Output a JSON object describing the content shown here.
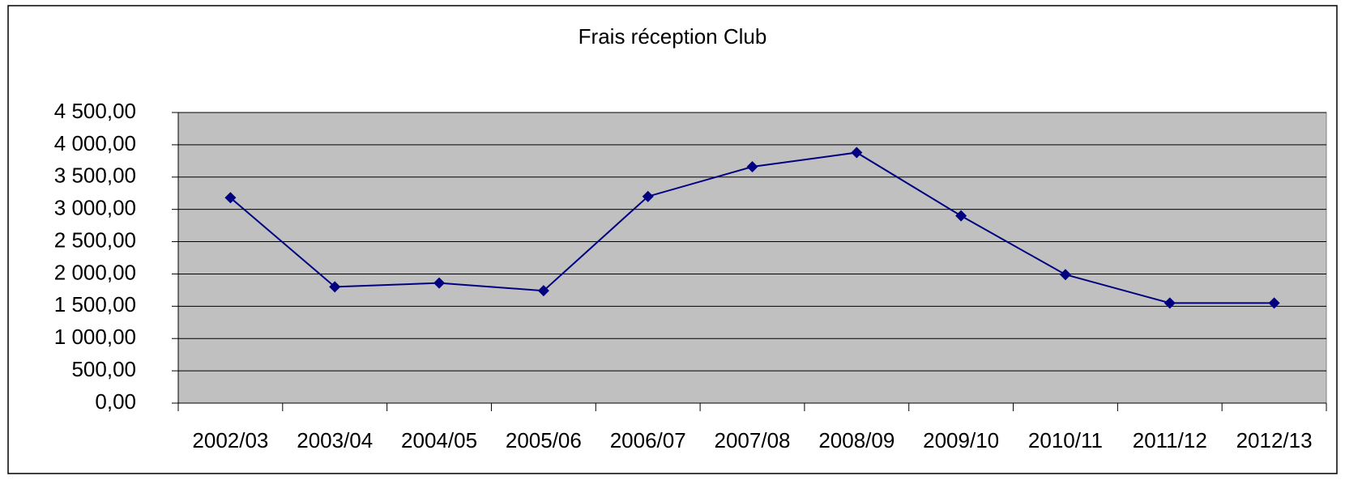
{
  "chart_data": {
    "type": "line",
    "title": "Frais réception Club",
    "categories": [
      "2002/03",
      "2003/04",
      "2004/05",
      "2005/06",
      "2006/07",
      "2007/08",
      "2008/09",
      "2009/10",
      "2010/11",
      "2011/12",
      "2012/13"
    ],
    "values": [
      3180,
      1800,
      1860,
      1740,
      3200,
      3660,
      3880,
      2900,
      1990,
      1550,
      1550
    ],
    "color": "#000080",
    "ylim": [
      0,
      4500
    ],
    "yticks": [
      {
        "value": 0,
        "label": "0,00"
      },
      {
        "value": 500,
        "label": "500,00"
      },
      {
        "value": 1000,
        "label": "1 000,00"
      },
      {
        "value": 1500,
        "label": "1 500,00"
      },
      {
        "value": 2000,
        "label": "2 000,00"
      },
      {
        "value": 2500,
        "label": "2 500,00"
      },
      {
        "value": 3000,
        "label": "3 000,00"
      },
      {
        "value": 3500,
        "label": "3 500,00"
      },
      {
        "value": 4000,
        "label": "4 000,00"
      },
      {
        "value": 4500,
        "label": "4 500,00"
      }
    ],
    "grid": true
  }
}
